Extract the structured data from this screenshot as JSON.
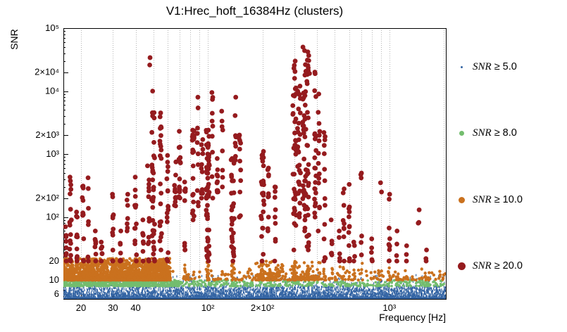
{
  "chart_data": {
    "type": "scatter",
    "title": "V1:Hrec_hoft_16384Hz (clusters)",
    "xlabel": "Frequency [Hz]",
    "ylabel": "SNR",
    "xscale": "log",
    "yscale": "log",
    "xlim": [
      16,
      2048
    ],
    "ylim": [
      5,
      100000
    ],
    "grid": {
      "vertical_dotted": true,
      "color": "#b2b2b2"
    },
    "x_ticks": [
      {
        "v": 20,
        "label": "20"
      },
      {
        "v": 30,
        "label": "30"
      },
      {
        "v": 40,
        "label": "40"
      },
      {
        "v": 100,
        "label": "10²"
      },
      {
        "v": 200,
        "label": "2×10²"
      },
      {
        "v": 1000,
        "label": "10³"
      }
    ],
    "x_gridlines": [
      20,
      30,
      40,
      50,
      60,
      70,
      80,
      90,
      100,
      200,
      300,
      400,
      500,
      600,
      700,
      800,
      900,
      1000,
      2000
    ],
    "y_ticks": [
      {
        "v": 6,
        "label": "6"
      },
      {
        "v": 10,
        "label": "10"
      },
      {
        "v": 20,
        "label": "20"
      },
      {
        "v": 100,
        "label": "10²"
      },
      {
        "v": 200,
        "label": "2×10²"
      },
      {
        "v": 1000,
        "label": "10³"
      },
      {
        "v": 2000,
        "label": "2×10³"
      },
      {
        "v": 10000,
        "label": "10⁴"
      },
      {
        "v": 20000,
        "label": "2×10⁴"
      },
      {
        "v": 100000,
        "label": "10⁵"
      }
    ],
    "series": [
      {
        "name": "snr_ge_5",
        "threshold": 5.0,
        "color": "#3465a4",
        "kind": "band",
        "streak": [
          1.2,
          3
        ],
        "bands": [
          {
            "f": [
              16,
              2048
            ],
            "snr": [
              5,
              8
            ],
            "n": 6000,
            "bias": 2.6
          }
        ],
        "spikes": {
          "p": 0.045,
          "snr": [
            8,
            12
          ]
        }
      },
      {
        "name": "snr_ge_8",
        "threshold": 8.0,
        "color": "#73bd6e",
        "kind": "band",
        "marker_px": 3.6,
        "bands": [
          {
            "f": [
              16,
              70
            ],
            "snr": [
              8,
              10
            ],
            "n": 620,
            "bias": 1.6
          },
          {
            "f": [
              70,
              2048
            ],
            "snr": [
              8,
              10
            ],
            "n": 360,
            "bias": 1.6
          }
        ]
      },
      {
        "name": "snr_ge_10",
        "threshold": 10.0,
        "color": "#ca711e",
        "kind": "band",
        "marker_px": 4.4,
        "companions": {
          "fraction": 0.35,
          "snr": [
            10,
            20
          ]
        },
        "bands": [
          {
            "f": [
              16,
              62
            ],
            "snr": [
              10,
              22
            ],
            "n": 1500,
            "bias": 2.2
          },
          {
            "f": [
              62,
              2048
            ],
            "snr": [
              10,
              15
            ],
            "n": 220,
            "bias": 2.0
          },
          {
            "f": [
              180,
              260
            ],
            "snr": [
              10,
              20
            ],
            "n": 90,
            "bias": 1.8
          },
          {
            "f": [
              290,
              420
            ],
            "snr": [
              10,
              20
            ],
            "n": 60,
            "bias": 1.8
          }
        ]
      },
      {
        "name": "snr_ge_20",
        "threshold": 20.0,
        "color": "#951b1e",
        "kind": "clusters",
        "marker_px": 6.8,
        "clusters": [
          [
            16.5,
            20,
            70,
            8
          ],
          [
            17.5,
            20,
            430,
            16
          ],
          [
            19,
            20,
            120,
            10
          ],
          [
            20.5,
            20,
            310,
            12
          ],
          [
            22,
            20,
            420,
            7
          ],
          [
            24,
            20,
            60,
            8
          ],
          [
            26,
            20,
            40,
            6
          ],
          [
            30,
            20,
            230,
            11
          ],
          [
            33,
            20,
            60,
            8
          ],
          [
            36,
            60,
            230,
            7
          ],
          [
            40,
            20,
            430,
            13
          ],
          [
            44,
            20,
            90,
            8
          ],
          [
            47,
            20,
            650,
            14
          ],
          [
            48,
            26000,
            34000,
            2
          ],
          [
            50,
            20,
            10000,
            34
          ],
          [
            55,
            30,
            4500,
            22
          ],
          [
            60,
            20,
            950,
            16
          ],
          [
            66,
            150,
            750,
            12
          ],
          [
            70,
            200,
            2300,
            14
          ],
          [
            75,
            30,
            360,
            10
          ],
          [
            83,
            90,
            2400,
            20
          ],
          [
            88,
            150,
            8000,
            10
          ],
          [
            93,
            200,
            1700,
            12
          ],
          [
            100,
            20,
            2400,
            55
          ],
          [
            106,
            200,
            9500,
            10
          ],
          [
            113,
            250,
            850,
            10
          ],
          [
            120,
            300,
            4800,
            8
          ],
          [
            137,
            20,
            850,
            30
          ],
          [
            142,
            800,
            8000,
            8
          ],
          [
            150,
            100,
            2000,
            12
          ],
          [
            200,
            20,
            1100,
            26
          ],
          [
            215,
            60,
            600,
            10
          ],
          [
            235,
            20,
            300,
            10
          ],
          [
            300,
            30,
            30000,
            38
          ],
          [
            318,
            100,
            12000,
            28
          ],
          [
            340,
            60,
            50000,
            40
          ],
          [
            356,
            30,
            42000,
            34
          ],
          [
            390,
            100,
            20000,
            22
          ],
          [
            410,
            60,
            9000,
            14
          ],
          [
            440,
            20,
            2200,
            14
          ],
          [
            480,
            25,
            90,
            6
          ],
          [
            530,
            20,
            60,
            5
          ],
          [
            560,
            20,
            280,
            9
          ],
          [
            600,
            20,
            330,
            11
          ],
          [
            640,
            20,
            40,
            4
          ],
          [
            700,
            25,
            500,
            6
          ],
          [
            800,
            20,
            45,
            5
          ],
          [
            900,
            250,
            350,
            2
          ],
          [
            1000,
            20,
            230,
            10
          ],
          [
            1100,
            20,
            60,
            4
          ],
          [
            1250,
            20,
            35,
            3
          ],
          [
            1450,
            80,
            130,
            3
          ],
          [
            1600,
            20,
            30,
            3
          ]
        ]
      }
    ],
    "legend": {
      "position": "right",
      "items": [
        {
          "var": "SNR",
          "rest": "≥ 5.0",
          "color": "#3465a4",
          "size": 3
        },
        {
          "var": "SNR",
          "rest": "≥ 8.0",
          "color": "#73bd6e",
          "size": 7
        },
        {
          "var": "SNR",
          "rest": "≥ 10.0",
          "color": "#ca711e",
          "size": 9
        },
        {
          "var": "SNR",
          "rest": "≥ 20.0",
          "color": "#951b1e",
          "size": 11
        }
      ]
    }
  }
}
